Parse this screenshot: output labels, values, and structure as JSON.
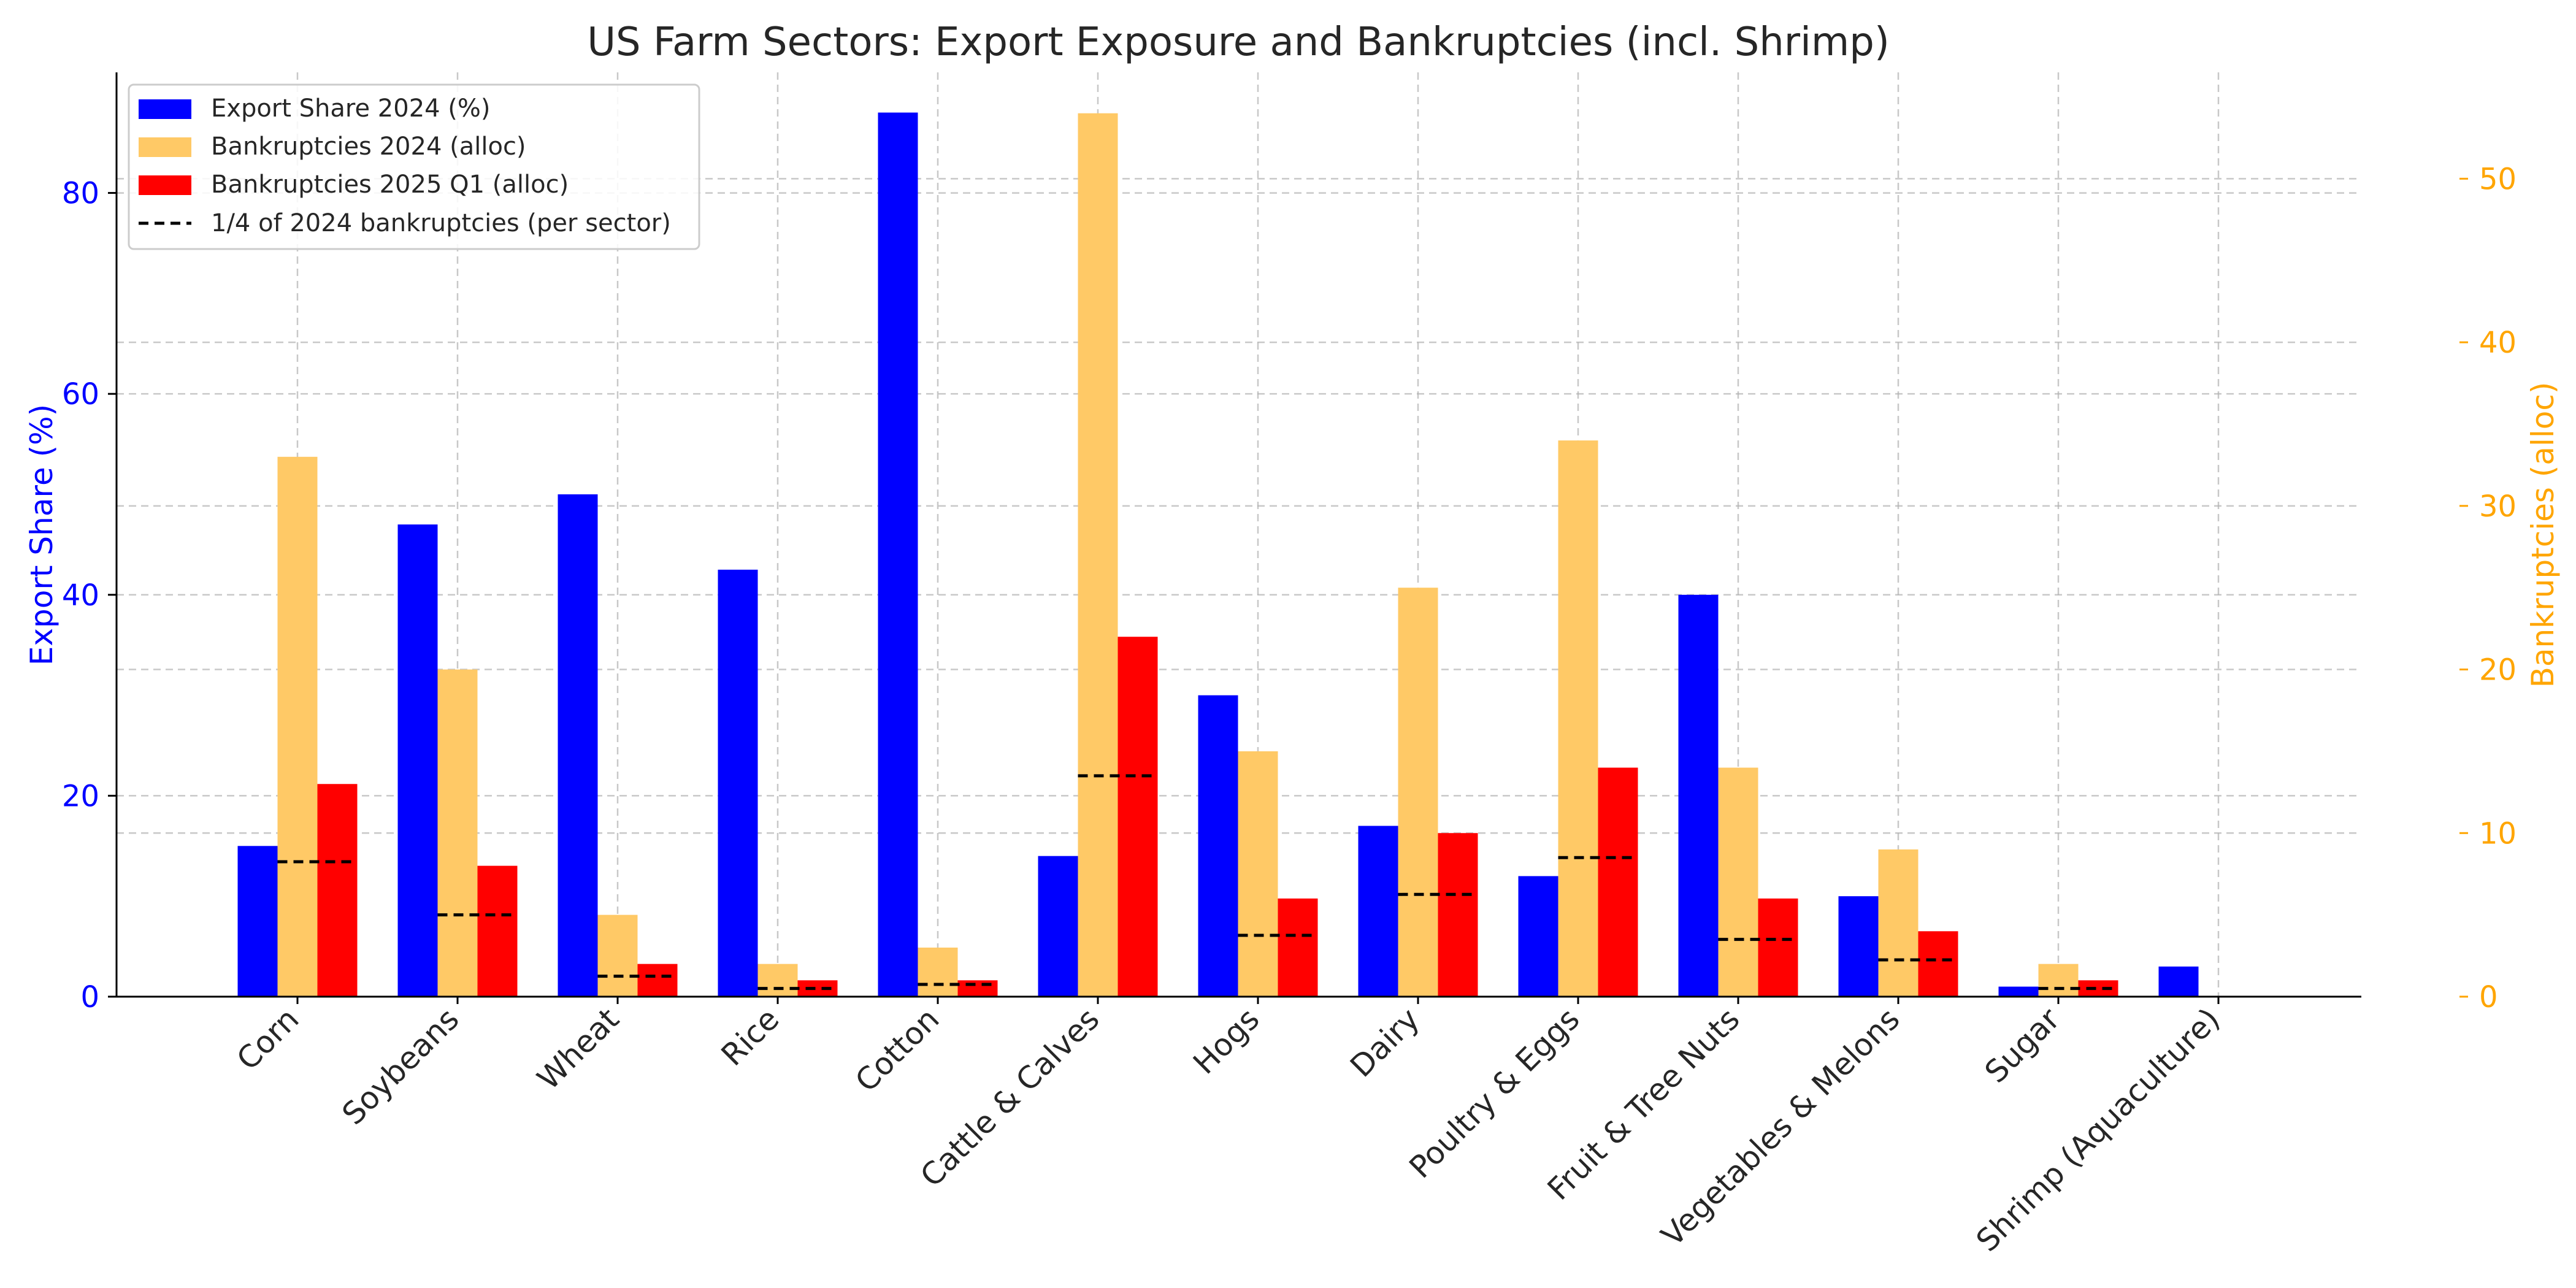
{
  "chart_data": {
    "type": "bar",
    "title": "US Farm Sectors: Export Exposure and Bankruptcies (incl. Shrimp)",
    "categories": [
      "Corn",
      "Soybeans",
      "Wheat",
      "Rice",
      "Cotton",
      "Cattle & Calves",
      "Hogs",
      "Dairy",
      "Poultry & Eggs",
      "Fruit & Tree Nuts",
      "Vegetables & Melons",
      "Sugar",
      "Shrimp (Aquaculture)"
    ],
    "y_left": {
      "label": "Export Share (%)",
      "ylim": [
        0,
        92
      ],
      "ticks": [
        0,
        20,
        40,
        60,
        80
      ],
      "color": "#0000ff"
    },
    "y_right": {
      "label": "Bankruptcies (alloc)",
      "ylim": [
        0,
        56.5
      ],
      "ticks": [
        0,
        10,
        20,
        30,
        40,
        50
      ],
      "color": "#ffa500"
    },
    "series": [
      {
        "name": "Export Share 2024 (%)",
        "axis": "left",
        "color": "#0000ff",
        "values": [
          15,
          47,
          50,
          42.5,
          88,
          14,
          30,
          17,
          12,
          40,
          10,
          1,
          3
        ]
      },
      {
        "name": "Bankruptcies 2024 (alloc)",
        "axis": "right",
        "color": "#ffc966",
        "values": [
          33,
          20,
          5,
          2,
          3,
          54,
          15,
          25,
          34,
          14,
          9,
          2,
          0
        ]
      },
      {
        "name": "Bankruptcies 2025 Q1 (alloc)",
        "axis": "right",
        "color": "#ff0000",
        "values": [
          13,
          8,
          2,
          1,
          1,
          22,
          6,
          10,
          14,
          6,
          4,
          1,
          0
        ]
      }
    ],
    "reference_line": {
      "name": "1/4 of 2024 bankruptcies (per sector)",
      "axis": "right",
      "color": "#000000",
      "style": "dashed",
      "values": [
        8.25,
        5,
        1.25,
        0.5,
        0.75,
        13.5,
        3.75,
        6.25,
        8.5,
        3.5,
        2.25,
        0.5,
        0
      ]
    },
    "grid": true,
    "legend": "top-left"
  }
}
